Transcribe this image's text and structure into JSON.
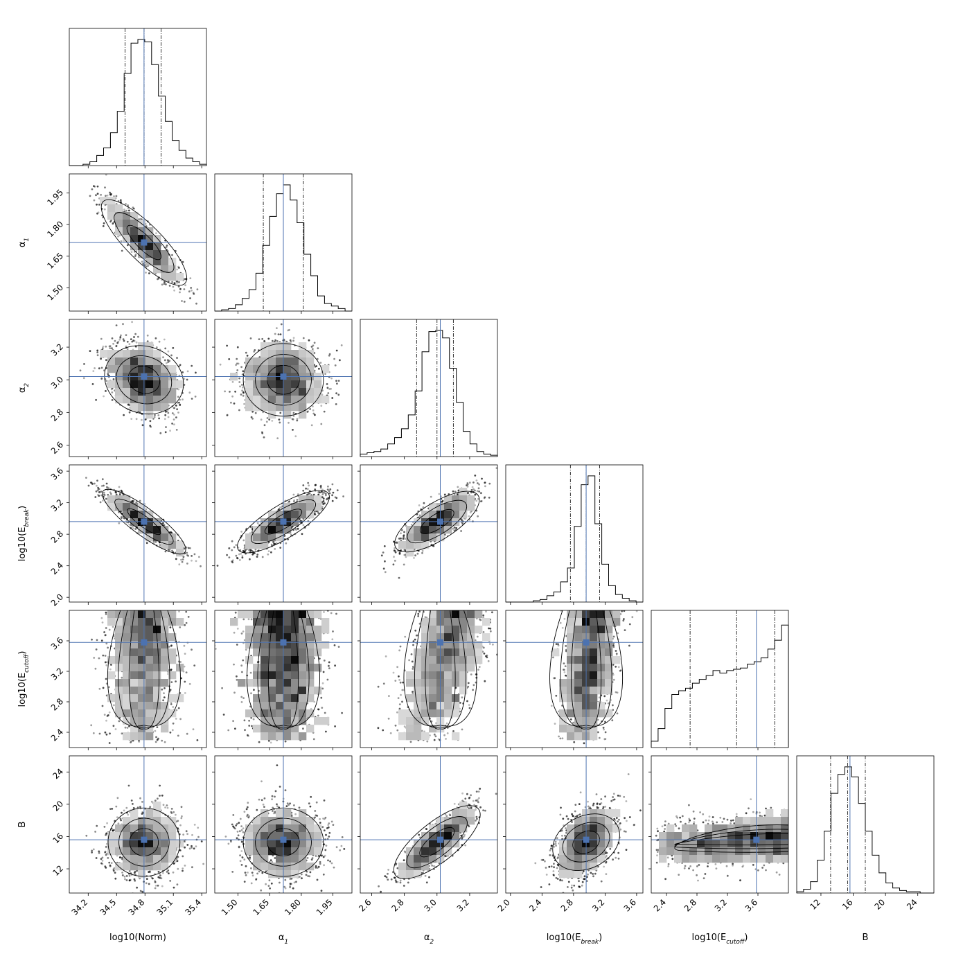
{
  "chart_data": {
    "type": "corner",
    "parameters": [
      {
        "id": "norm",
        "label": "log10(Norm)",
        "range": [
          34.0,
          35.45
        ],
        "truth": 34.79,
        "quantiles": [
          34.59,
          34.79,
          34.97
        ],
        "ticks": [
          "34.2",
          "34.5",
          "34.8",
          "35.1",
          "35.4"
        ],
        "tick_values": [
          34.2,
          34.5,
          34.8,
          35.1,
          35.4
        ]
      },
      {
        "id": "alpha1",
        "label": "α1",
        "range": [
          1.39,
          2.04
        ],
        "truth": 1.715,
        "quantiles": [
          1.62,
          1.715,
          1.81
        ],
        "ticks": [
          "1.50",
          "1.65",
          "1.80",
          "1.95"
        ],
        "tick_values": [
          1.5,
          1.65,
          1.8,
          1.95
        ]
      },
      {
        "id": "alpha2",
        "label": "α2",
        "range": [
          2.53,
          3.37
        ],
        "truth": 3.02,
        "quantiles": [
          2.875,
          3.0,
          3.1
        ],
        "ticks": [
          "2.6",
          "2.8",
          "3.0",
          "3.2"
        ],
        "tick_values": [
          2.6,
          2.8,
          3.0,
          3.2
        ]
      },
      {
        "id": "ebreak",
        "label": "log10(Ebreak)",
        "range": [
          1.94,
          3.68
        ],
        "truth": 2.96,
        "quantiles": [
          2.76,
          2.96,
          3.13
        ],
        "ticks": [
          "2.0",
          "2.4",
          "2.8",
          "3.2",
          "3.6"
        ],
        "tick_values": [
          2.0,
          2.4,
          2.8,
          3.2,
          3.6
        ]
      },
      {
        "id": "ecutoff",
        "label": "log10(Ecutoff)",
        "range": [
          2.2,
          4.0
        ],
        "truth": 3.58,
        "quantiles": [
          2.71,
          3.32,
          3.82
        ],
        "ticks": [
          "2.4",
          "2.8",
          "3.2",
          "3.6"
        ],
        "tick_values": [
          2.4,
          2.8,
          3.2,
          3.6
        ]
      },
      {
        "id": "B",
        "label": "B",
        "range": [
          9.0,
          26.0
        ],
        "truth": 15.6,
        "quantiles": [
          13.2,
          15.3,
          17.5
        ],
        "ticks": [
          "12",
          "16",
          "20",
          "24"
        ],
        "tick_values": [
          12,
          16,
          20,
          24
        ]
      }
    ],
    "label_parts": [
      {
        "base": "log10(Norm)",
        "sub": "",
        "tail": ""
      },
      {
        "base": "α",
        "sub": "1",
        "tail": ""
      },
      {
        "base": "α",
        "sub": "2",
        "tail": ""
      },
      {
        "base": "log10(E",
        "sub": "break",
        "tail": ")"
      },
      {
        "base": "log10(E",
        "sub": "cutoff",
        "tail": ")"
      },
      {
        "base": "B",
        "sub": "",
        "tail": ""
      }
    ],
    "histograms": [
      [
        0.0,
        0.0,
        0.01,
        0.03,
        0.08,
        0.14,
        0.26,
        0.43,
        0.73,
        0.97,
        1.0,
        0.98,
        0.8,
        0.55,
        0.35,
        0.2,
        0.12,
        0.06,
        0.03,
        0.01
      ],
      [
        0.0,
        0.01,
        0.02,
        0.05,
        0.1,
        0.17,
        0.3,
        0.52,
        0.75,
        0.93,
        1.0,
        0.88,
        0.7,
        0.45,
        0.28,
        0.12,
        0.06,
        0.04,
        0.02,
        0.0
      ],
      [
        0.02,
        0.03,
        0.04,
        0.06,
        0.1,
        0.15,
        0.22,
        0.33,
        0.52,
        0.83,
        0.99,
        1.0,
        0.94,
        0.7,
        0.43,
        0.2,
        0.1,
        0.04,
        0.02,
        0.01
      ],
      [
        0.0,
        0.0,
        0.0,
        0.0,
        0.01,
        0.02,
        0.05,
        0.08,
        0.16,
        0.27,
        0.6,
        0.93,
        1.0,
        0.62,
        0.3,
        0.13,
        0.06,
        0.03,
        0.01,
        0.0
      ],
      [
        0.05,
        0.15,
        0.31,
        0.42,
        0.45,
        0.47,
        0.51,
        0.54,
        0.57,
        0.61,
        0.59,
        0.61,
        0.62,
        0.63,
        0.66,
        0.68,
        0.71,
        0.78,
        0.85,
        0.97
      ],
      [
        0.01,
        0.03,
        0.09,
        0.26,
        0.49,
        0.79,
        0.94,
        1.0,
        0.92,
        0.71,
        0.49,
        0.3,
        0.16,
        0.08,
        0.04,
        0.02,
        0.01,
        0.01,
        0.0,
        0.0
      ]
    ],
    "correlations": [
      [
        1.0,
        -0.9,
        -0.35,
        -0.92,
        0.0,
        0.0
      ],
      [
        -0.9,
        1.0,
        0.0,
        0.85,
        0.0,
        0.0
      ],
      [
        -0.35,
        0.0,
        1.0,
        0.8,
        0.05,
        0.85
      ],
      [
        -0.92,
        0.85,
        0.8,
        1.0,
        0.05,
        0.45
      ],
      [
        0.0,
        0.0,
        0.05,
        0.05,
        1.0,
        0.15
      ],
      [
        0.0,
        0.0,
        0.85,
        0.45,
        0.15,
        1.0
      ]
    ],
    "truth_color": "#4c72b0",
    "hist_color": "#000000",
    "grid": false,
    "legend": "none"
  }
}
